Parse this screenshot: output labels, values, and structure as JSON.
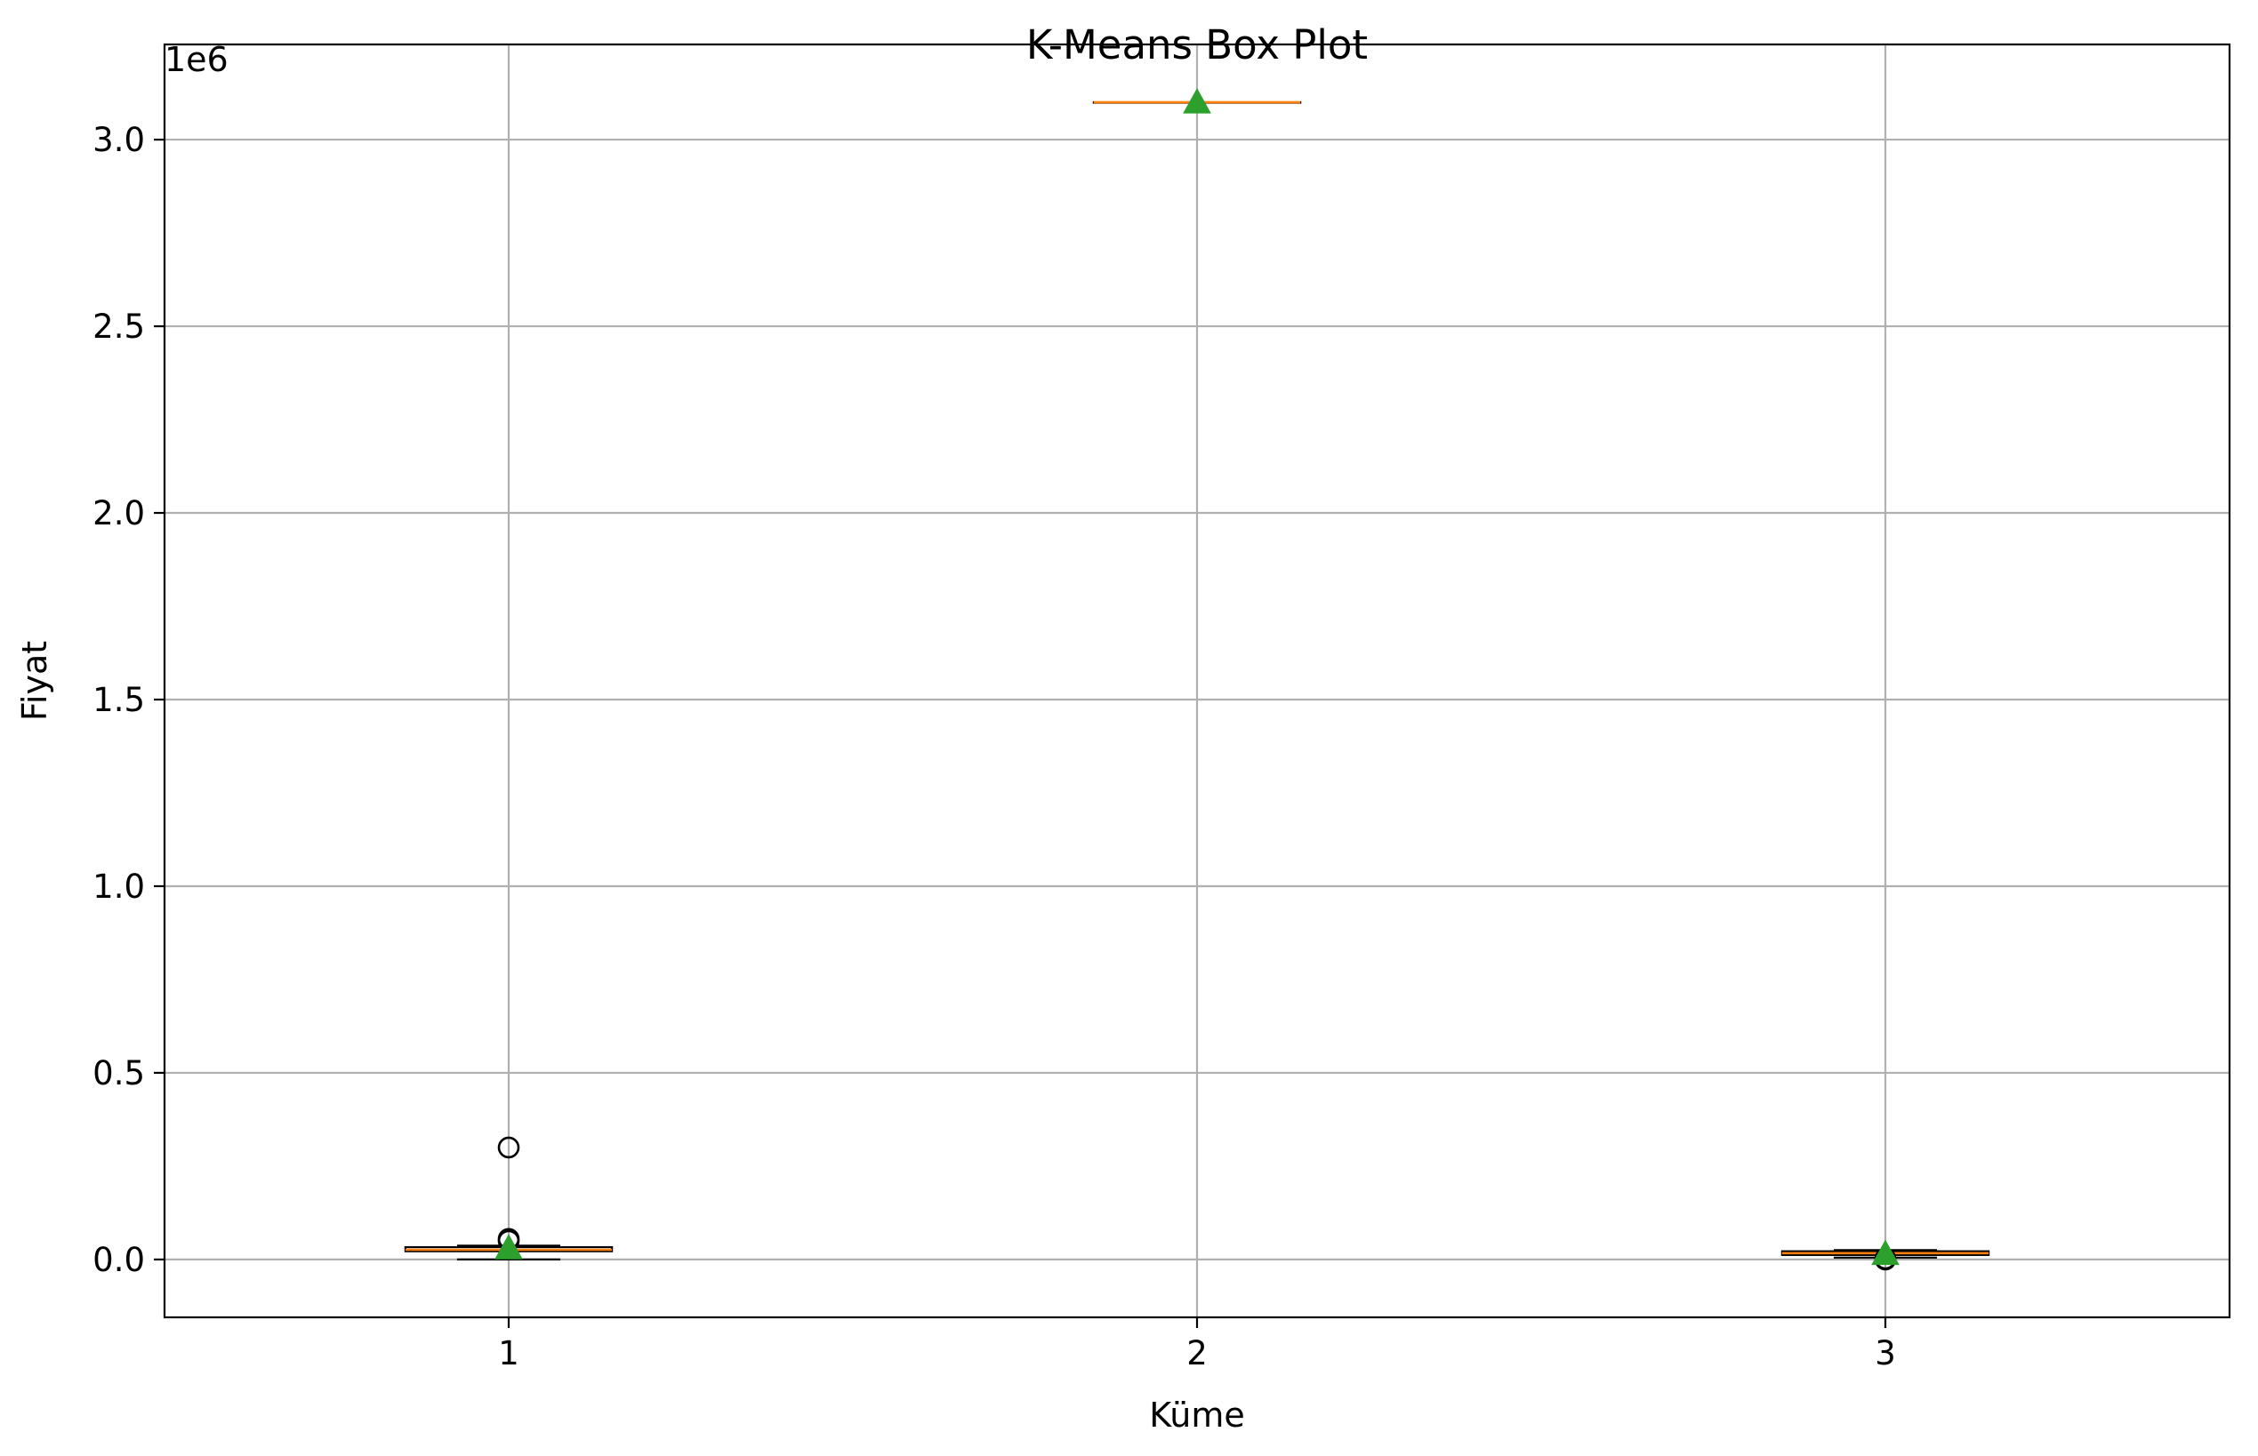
{
  "chart_data": {
    "type": "box",
    "title": "K-Means Box Plot",
    "xlabel": "Küme",
    "ylabel": "Fiyat",
    "y_offset_label": "1e6",
    "y_scale_factor": 1000000,
    "ylim": [
      -0.155,
      3.255
    ],
    "xlim": [
      0.5,
      3.5
    ],
    "yticks": [
      0.0,
      0.5,
      1.0,
      1.5,
      2.0,
      2.5,
      3.0
    ],
    "ytick_labels": [
      "0.0",
      "0.5",
      "1.0",
      "1.5",
      "2.0",
      "2.5",
      "3.0"
    ],
    "xticks": [
      1,
      2,
      3
    ],
    "xtick_labels": [
      "1",
      "2",
      "3"
    ],
    "grid": true,
    "boxes": [
      {
        "position": 1,
        "whisker_low": 0.0,
        "q1": 0.022,
        "median": 0.026,
        "q3": 0.033,
        "whisker_high": 0.037,
        "mean": 0.03,
        "outliers": [
          0.3,
          0.055,
          0.05
        ]
      },
      {
        "position": 2,
        "whisker_low": 3.1,
        "q1": 3.1,
        "median": 3.1,
        "q3": 3.1,
        "whisker_high": 3.1,
        "mean": 3.1,
        "outliers": []
      },
      {
        "position": 3,
        "whisker_low": 0.005,
        "q1": 0.012,
        "median": 0.017,
        "q3": 0.022,
        "whisker_high": 0.025,
        "mean": 0.015,
        "outliers": [
          0.002,
          0.0
        ]
      }
    ],
    "colors": {
      "box": "#000000",
      "median": "#ff7f0e",
      "mean": "#2ca02c",
      "grid": "#b0b0b0"
    }
  }
}
